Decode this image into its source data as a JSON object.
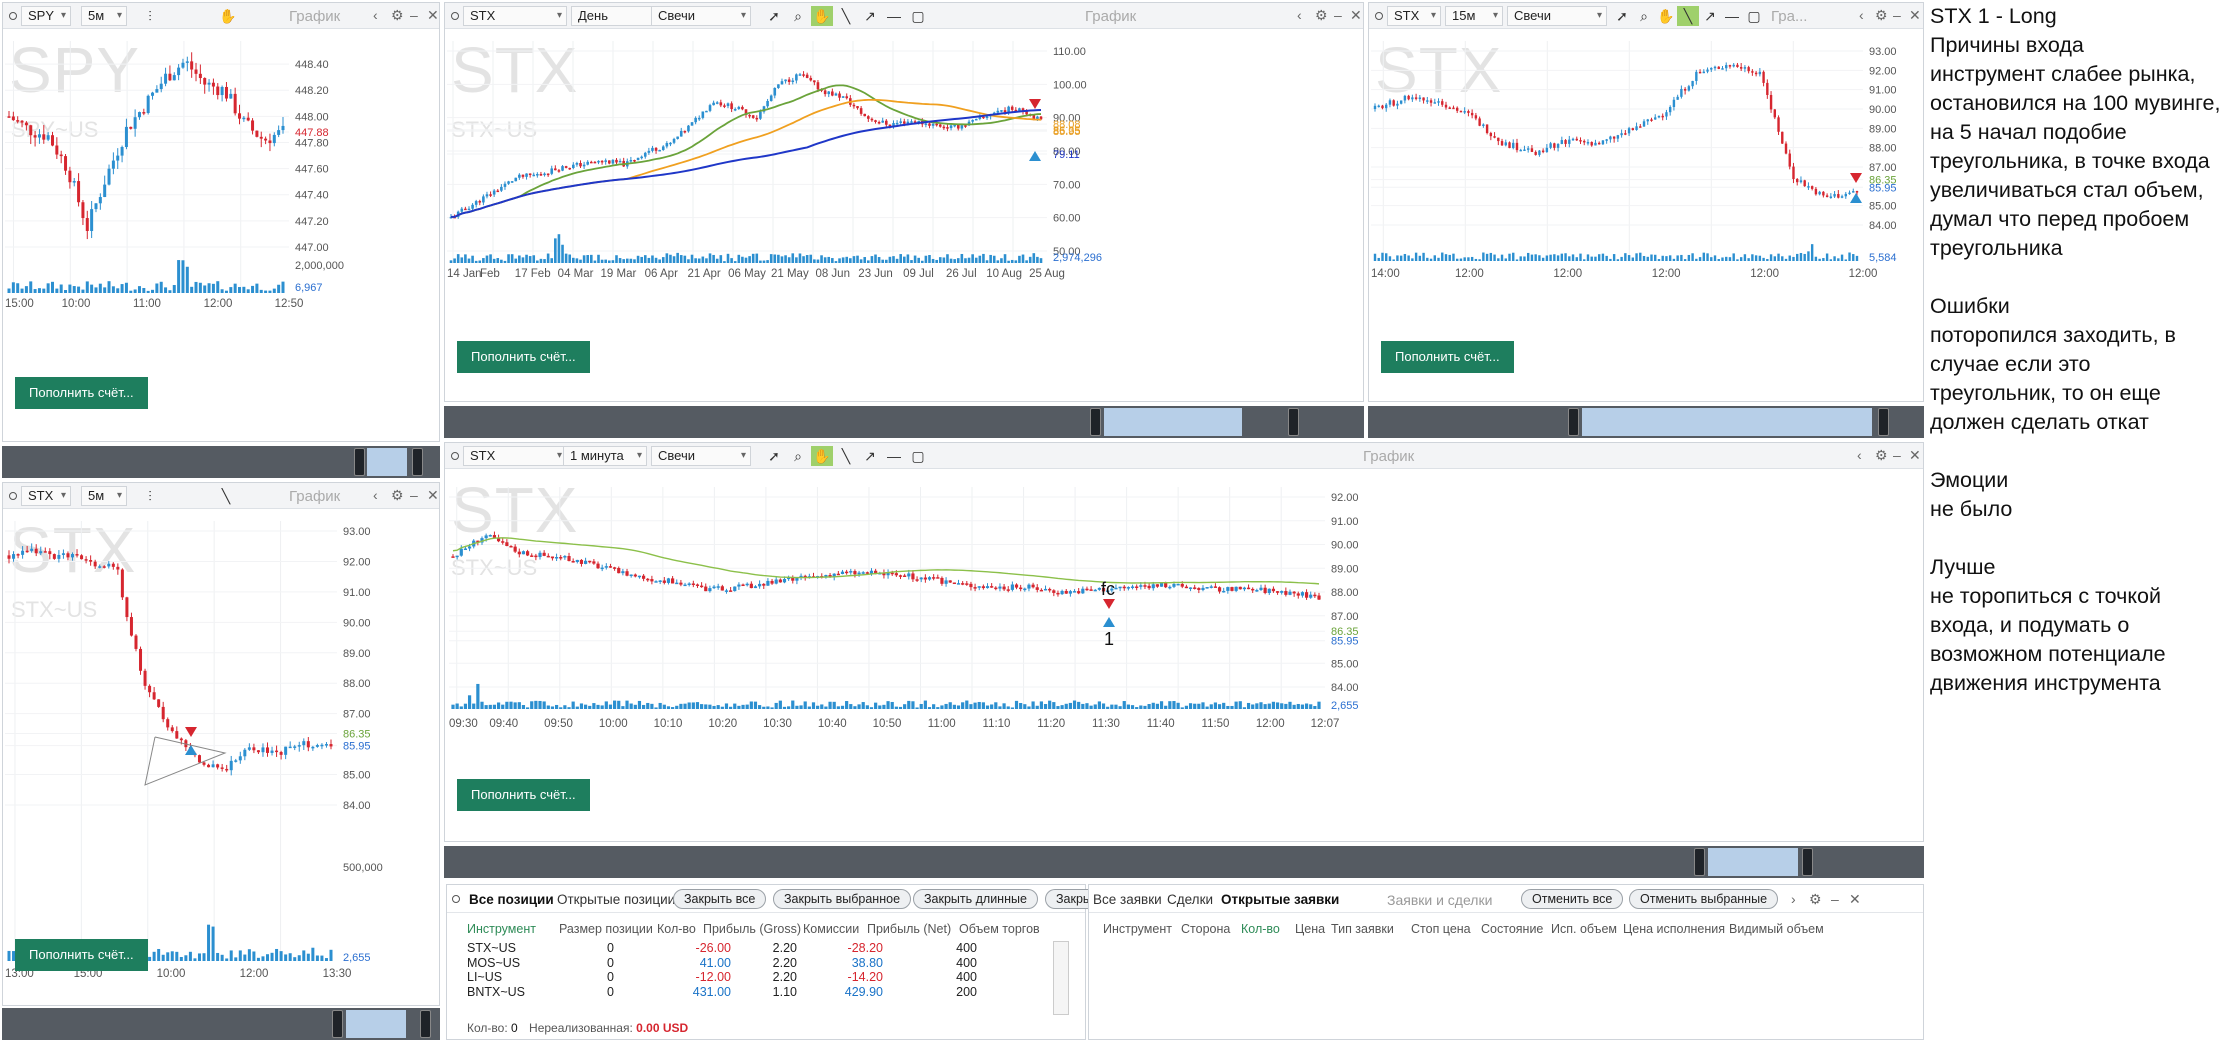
{
  "common": {
    "fund_label": "Пополнить счёт...",
    "chart_label": "График",
    "chart_type": "Свечи"
  },
  "spy5": {
    "symbol": "SPY",
    "interval": "5м",
    "watermark": "SPY",
    "watermark_sub": "SPY~US",
    "price_ticks": [
      "448.40",
      "448.20",
      "448.00",
      "447.88",
      "447.80",
      "447.60",
      "447.40",
      "447.20",
      "447.00"
    ],
    "vol_ticks": [
      "2,000,000",
      "6,967"
    ],
    "time_ticks": [
      "15:00",
      "10:00",
      "11:00",
      "12:00",
      "12:50"
    ]
  },
  "stxd": {
    "symbol": "STX",
    "interval": "День",
    "watermark": "STX",
    "watermark_sub": "STX~US",
    "price_ticks": [
      "110.00",
      "100.00",
      "90.00",
      "88.08",
      "86.35",
      "85.95",
      "80.00",
      "79.11",
      "70.00",
      "60.00",
      "50.00"
    ],
    "vol_ticks": [
      "2,974,296"
    ],
    "time_ticks": [
      "14 Jan",
      "Feb",
      "17 Feb",
      "04 Mar",
      "19 Mar",
      "06 Apr",
      "21 Apr",
      "06 May",
      "21 May",
      "08 Jun",
      "23 Jun",
      "09 Jul",
      "26 Jul",
      "10 Aug",
      "25 Aug"
    ]
  },
  "stx15": {
    "symbol": "STX",
    "interval": "15м",
    "watermark": "STX",
    "title_short": "Гра...",
    "price_ticks": [
      "93.00",
      "92.00",
      "91.00",
      "90.00",
      "89.00",
      "88.00",
      "87.00",
      "86.35",
      "85.95",
      "85.00",
      "84.00"
    ],
    "vol_ticks": [
      "5,584"
    ],
    "time_ticks": [
      "14:00",
      "12:00",
      "12:00",
      "12:00",
      "12:00",
      "12:00"
    ]
  },
  "stx5": {
    "symbol": "STX",
    "interval": "5м",
    "watermark": "STX",
    "watermark_sub": "STX~US",
    "price_ticks": [
      "93.00",
      "92.00",
      "91.00",
      "90.00",
      "89.00",
      "88.00",
      "87.00",
      "86.35",
      "85.95",
      "85.00",
      "84.00"
    ],
    "vol_ticks": [
      "500,000",
      "2,655"
    ],
    "time_ticks": [
      "13:00",
      "15:00",
      "10:00",
      "12:00",
      "13:30"
    ]
  },
  "stx1": {
    "symbol": "STX",
    "interval": "1 минута",
    "watermark": "STX",
    "watermark_sub": "STX~US",
    "annot_top": "fc",
    "annot_bottom": "1",
    "price_ticks": [
      "92.00",
      "91.00",
      "90.00",
      "89.00",
      "88.00",
      "87.00",
      "86.35",
      "85.95",
      "85.00",
      "84.00"
    ],
    "vol_ticks": [
      "2,655"
    ],
    "time_ticks": [
      "09:30",
      "09:40",
      "09:50",
      "10:00",
      "10:10",
      "10:20",
      "10:30",
      "10:40",
      "10:50",
      "11:00",
      "11:10",
      "11:20",
      "11:30",
      "11:40",
      "11:50",
      "12:00",
      "12:07"
    ]
  },
  "notes": [
    "STX 1 - Long",
    "Причины входа",
    "инструмент слабее рынка,",
    "остановился на 100 мувинге,",
    "на 5 начал подобие",
    "треугольника, в точке входа",
    "увеличиваться стал объем,",
    "думал что перед пробоем",
    "треугольника",
    "",
    "Ошибки",
    "поторопился заходить, в",
    "случае если это",
    "треугольник, то он еще",
    "должен сделать откат",
    "",
    "Эмоции",
    "не было",
    "",
    "Лучше",
    "не торопиться с точкой",
    "входа, и подумать о",
    "возможном потенциале",
    "движения инструмента"
  ],
  "positions": {
    "tabs": [
      "Все позиции",
      "Открытые позиции"
    ],
    "buttons": [
      "Закрыть все",
      "Закрыть выбранное",
      "Закрыть длинные",
      "Закры"
    ],
    "headers": [
      "Инструмент",
      "Размер позиции",
      "Кол-во",
      "Прибыль (Gross)",
      "Комиссии",
      "Прибыль (Net)",
      "Объем торгов"
    ],
    "rows": [
      {
        "inst": "STX~US",
        "qty": "0",
        "gross": "-26.00",
        "comm": "2.20",
        "net": "-28.20",
        "vol": "400"
      },
      {
        "inst": "MOS~US",
        "qty": "0",
        "gross": "41.00",
        "comm": "2.20",
        "net": "38.80",
        "vol": "400"
      },
      {
        "inst": "LI~US",
        "qty": "0",
        "gross": "-12.00",
        "comm": "2.20",
        "net": "-14.20",
        "vol": "400"
      },
      {
        "inst": "BNTX~US",
        "qty": "0",
        "gross": "431.00",
        "comm": "1.10",
        "net": "429.90",
        "vol": "200"
      }
    ],
    "footer_qty_label": "Кол-во:",
    "footer_qty": "0",
    "footer_unreal_label": "Нереализованная:",
    "footer_unreal": "0.00 USD"
  },
  "orders": {
    "tabs": [
      "Все заявки",
      "Сделки",
      "Открытые заявки"
    ],
    "title": "Заявки и сделки",
    "buttons": [
      "Отменить все",
      "Отменить выбранные"
    ],
    "headers": [
      "Инструмент",
      "Сторона",
      "Кол-во",
      "Цена",
      "Тип заявки",
      "Стоп цена",
      "Состояние",
      "Исп. объем",
      "Цена исполнения",
      "Видимый объем"
    ]
  },
  "chart_data": [
    {
      "type": "line",
      "title": "SPY 5м",
      "ylim": [
        447.0,
        448.5
      ],
      "series": [
        {
          "name": "SPY",
          "values": [
            448.0,
            447.9,
            447.85,
            447.6,
            447.15,
            447.55,
            447.9,
            448.1,
            448.3,
            448.42,
            448.25,
            448.2,
            447.95,
            447.82,
            447.88
          ]
        }
      ]
    },
    {
      "type": "line",
      "title": "STX День",
      "ylim": [
        50,
        110
      ],
      "series": [
        {
          "name": "STX",
          "values": [
            60,
            64,
            68,
            72,
            73,
            75,
            76,
            77,
            76,
            80,
            82,
            88,
            95,
            93,
            90,
            100,
            103,
            98,
            96,
            90,
            88,
            89,
            88,
            87,
            89,
            92,
            93,
            89
          ]
        }
      ]
    },
    {
      "type": "line",
      "title": "STX 15м",
      "ylim": [
        84,
        93
      ],
      "series": [
        {
          "name": "STX",
          "values": [
            90.0,
            90.6,
            90.4,
            89.6,
            88.2,
            87.8,
            88.4,
            88.2,
            88.9,
            89.8,
            91.8,
            92.3,
            91.9,
            86.5,
            85.4,
            85.7
          ]
        }
      ]
    },
    {
      "type": "line",
      "title": "STX 5м",
      "ylim": [
        84,
        93
      ],
      "series": [
        {
          "name": "STX",
          "values": [
            92.2,
            92.3,
            92.2,
            92.0,
            91.8,
            88.0,
            86.5,
            85.5,
            85.2,
            85.9,
            85.7,
            86.0,
            85.9
          ]
        }
      ]
    },
    {
      "type": "line",
      "title": "STX 1 минута",
      "ylim": [
        84,
        92
      ],
      "series": [
        {
          "name": "STX",
          "values": [
            89.5,
            90.4,
            89.7,
            89.5,
            89.3,
            88.9,
            88.6,
            88.4,
            88.1,
            88.2,
            88.4,
            88.6,
            88.8,
            88.8,
            88.7,
            88.5,
            88.3,
            88.2,
            88.2,
            88.0,
            88.1,
            88.2,
            88.3,
            88.2,
            88.1,
            88.1,
            88.0,
            87.8
          ]
        }
      ]
    }
  ]
}
